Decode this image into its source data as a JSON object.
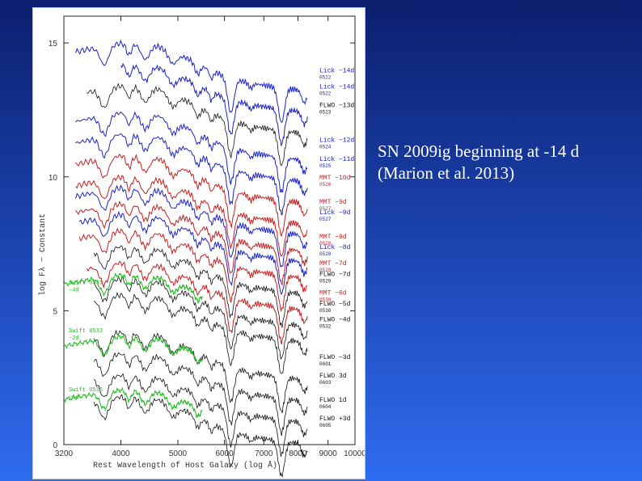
{
  "caption": {
    "line1": "SN 2009ig beginning at -14 d",
    "line2": "(Marion et al. 2013)"
  },
  "chart_data": {
    "type": "line",
    "xlabel": "Rest Wavelength of Host Galaxy (log Å)",
    "ylabel": "log Fλ − Constant",
    "xlim": [
      3200,
      10000
    ],
    "ylim": [
      0,
      16
    ],
    "x_ticks": [
      3200,
      4000,
      5000,
      6000,
      7000,
      8000,
      9000,
      10000
    ],
    "y_ticks": [
      0,
      5,
      10,
      15
    ],
    "colors": {
      "Lick": "#1a22c8",
      "MMT": "#c81e1e",
      "FLWO": "#111111",
      "Swift": "#22bb22"
    },
    "series": [
      {
        "name": "Lick −14d",
        "code": "0522",
        "instrument": "Lick",
        "offset": 14.0,
        "x0": 3350,
        "x1": 8300
      },
      {
        "name": "Lick −14d",
        "code": "0522",
        "instrument": "Lick",
        "offset": 13.2,
        "x0": 4000,
        "x1": 8300
      },
      {
        "name": "FLWO −13d",
        "code": "0523",
        "instrument": "FLWO",
        "offset": 12.4,
        "x0": 3500,
        "x1": 8300
      },
      {
        "name": "Lick −12d",
        "code": "0524",
        "instrument": "Lick",
        "offset": 11.4,
        "x0": 3350,
        "x1": 8300
      },
      {
        "name": "Lick −11d",
        "code": "0525",
        "instrument": "Lick",
        "offset": 10.6,
        "x0": 3350,
        "x1": 8300
      },
      {
        "name": "MMT −10d",
        "code": "0526",
        "instrument": "MMT",
        "offset": 9.8,
        "x0": 3350,
        "x1": 8300
      },
      {
        "name": "MMT −9d",
        "code": "0527",
        "instrument": "MMT",
        "offset": 9.0,
        "x0": 3350,
        "x1": 8300
      },
      {
        "name": "Lick −9d",
        "code": "0527",
        "instrument": "Lick",
        "offset": 8.6,
        "x0": 3350,
        "x1": 8300
      },
      {
        "name": "MMT −9d",
        "code": "0528",
        "instrument": "MMT",
        "offset": 8.0,
        "x0": 3350,
        "x1": 8300
      },
      {
        "name": "Lick −8d",
        "code": "0528",
        "instrument": "Lick",
        "offset": 7.6,
        "x0": 3400,
        "x1": 8300
      },
      {
        "name": "MMT −7d",
        "code": "0529",
        "instrument": "MMT",
        "offset": 7.0,
        "x0": 3400,
        "x1": 8300
      },
      {
        "name": "FLWO −7d",
        "code": "0529",
        "instrument": "FLWO",
        "offset": 6.4,
        "x0": 3600,
        "x1": 8300
      },
      {
        "name": "MMT −6d",
        "code": "0530",
        "instrument": "MMT",
        "offset": 5.8,
        "x0": 3500,
        "x1": 8300
      },
      {
        "name": "FLWO −5d",
        "code": "0530",
        "instrument": "FLWO",
        "offset": 5.2,
        "x0": 3600,
        "x1": 8300
      },
      {
        "name": "FLWO −4d",
        "code": "0532",
        "instrument": "FLWO",
        "offset": 4.6,
        "x0": 3600,
        "x1": 8300
      },
      {
        "name": "FLWO −3d",
        "code": "0601",
        "instrument": "FLWO",
        "offset": 3.2,
        "x0": 3600,
        "x1": 8300
      },
      {
        "name": "FLWO 3d",
        "code": "0603",
        "instrument": "FLWO",
        "offset": 2.4,
        "x0": 3600,
        "x1": 8300
      },
      {
        "name": "FLWO 1d",
        "code": "0604",
        "instrument": "FLWO",
        "offset": 1.6,
        "x0": 3600,
        "x1": 8300
      },
      {
        "name": "FLWO +3d",
        "code": "0605",
        "instrument": "FLWO",
        "offset": 0.8,
        "x0": 3600,
        "x1": 8300
      },
      {
        "name": "Swift 0531 −4d",
        "code": "0531",
        "instrument": "Swift",
        "offset": 5.5,
        "x0": 3200,
        "x1": 5500
      },
      {
        "name": "Swift 0533 −2d",
        "code": "0533",
        "instrument": "Swift",
        "offset": 3.2,
        "x0": 3200,
        "x1": 5500
      },
      {
        "name": "Swift 0536 −1d",
        "code": "0536",
        "instrument": "Swift",
        "offset": 1.2,
        "x0": 3200,
        "x1": 5500
      }
    ],
    "labels": [
      {
        "text": "Lick −14d",
        "code": "0522",
        "color": "#1a22c8",
        "y": 13.9
      },
      {
        "text": "Lick −14d",
        "code": "0522",
        "color": "#1a22c8",
        "y": 13.3
      },
      {
        "text": "FLWO −13d",
        "code": "0523",
        "color": "#111111",
        "y": 12.6
      },
      {
        "text": "Lick −12d",
        "code": "0524",
        "color": "#1a22c8",
        "y": 11.3
      },
      {
        "text": "Lick −11d",
        "code": "0525",
        "color": "#1a22c8",
        "y": 10.6
      },
      {
        "text": "MMT −10d",
        "code": "0526",
        "color": "#c81e1e",
        "y": 9.9
      },
      {
        "text": "MMT −9d",
        "code": "0527",
        "color": "#c81e1e",
        "y": 9.0
      },
      {
        "text": "Lick −9d",
        "code": "0527",
        "color": "#1a22c8",
        "y": 8.6
      },
      {
        "text": "MMT −9d",
        "code": "0528",
        "color": "#c81e1e",
        "y": 7.7
      },
      {
        "text": "Lick −8d",
        "code": "0528",
        "color": "#1a22c8",
        "y": 7.3
      },
      {
        "text": "MMT −7d",
        "code": "0529",
        "color": "#c81e1e",
        "y": 6.7
      },
      {
        "text": "FLWO −7d",
        "code": "0529",
        "color": "#111111",
        "y": 6.3
      },
      {
        "text": "MMT −6d",
        "code": "0530",
        "color": "#c81e1e",
        "y": 5.6
      },
      {
        "text": "FLWO −5d",
        "code": "0530",
        "color": "#111111",
        "y": 5.2
      },
      {
        "text": "FLWO −4d",
        "code": "0532",
        "color": "#111111",
        "y": 4.6
      },
      {
        "text": "FLWO −3d",
        "code": "0601",
        "color": "#111111",
        "y": 3.2
      },
      {
        "text": "FLWO 3d",
        "code": "0603",
        "color": "#111111",
        "y": 2.5
      },
      {
        "text": "FLWO 1d",
        "code": "0604",
        "color": "#111111",
        "y": 1.6
      },
      {
        "text": "FLWO +3d",
        "code": "0605",
        "color": "#111111",
        "y": 0.9
      }
    ],
    "swift_labels": [
      {
        "line1": "Swift 0531",
        "line2": "−4d",
        "y": 6.0
      },
      {
        "line1": "Swift 0533",
        "line2": "−2d",
        "y": 4.2
      },
      {
        "line1": "Swift 0536",
        "line2": "−1d",
        "y": 2.0
      }
    ]
  }
}
